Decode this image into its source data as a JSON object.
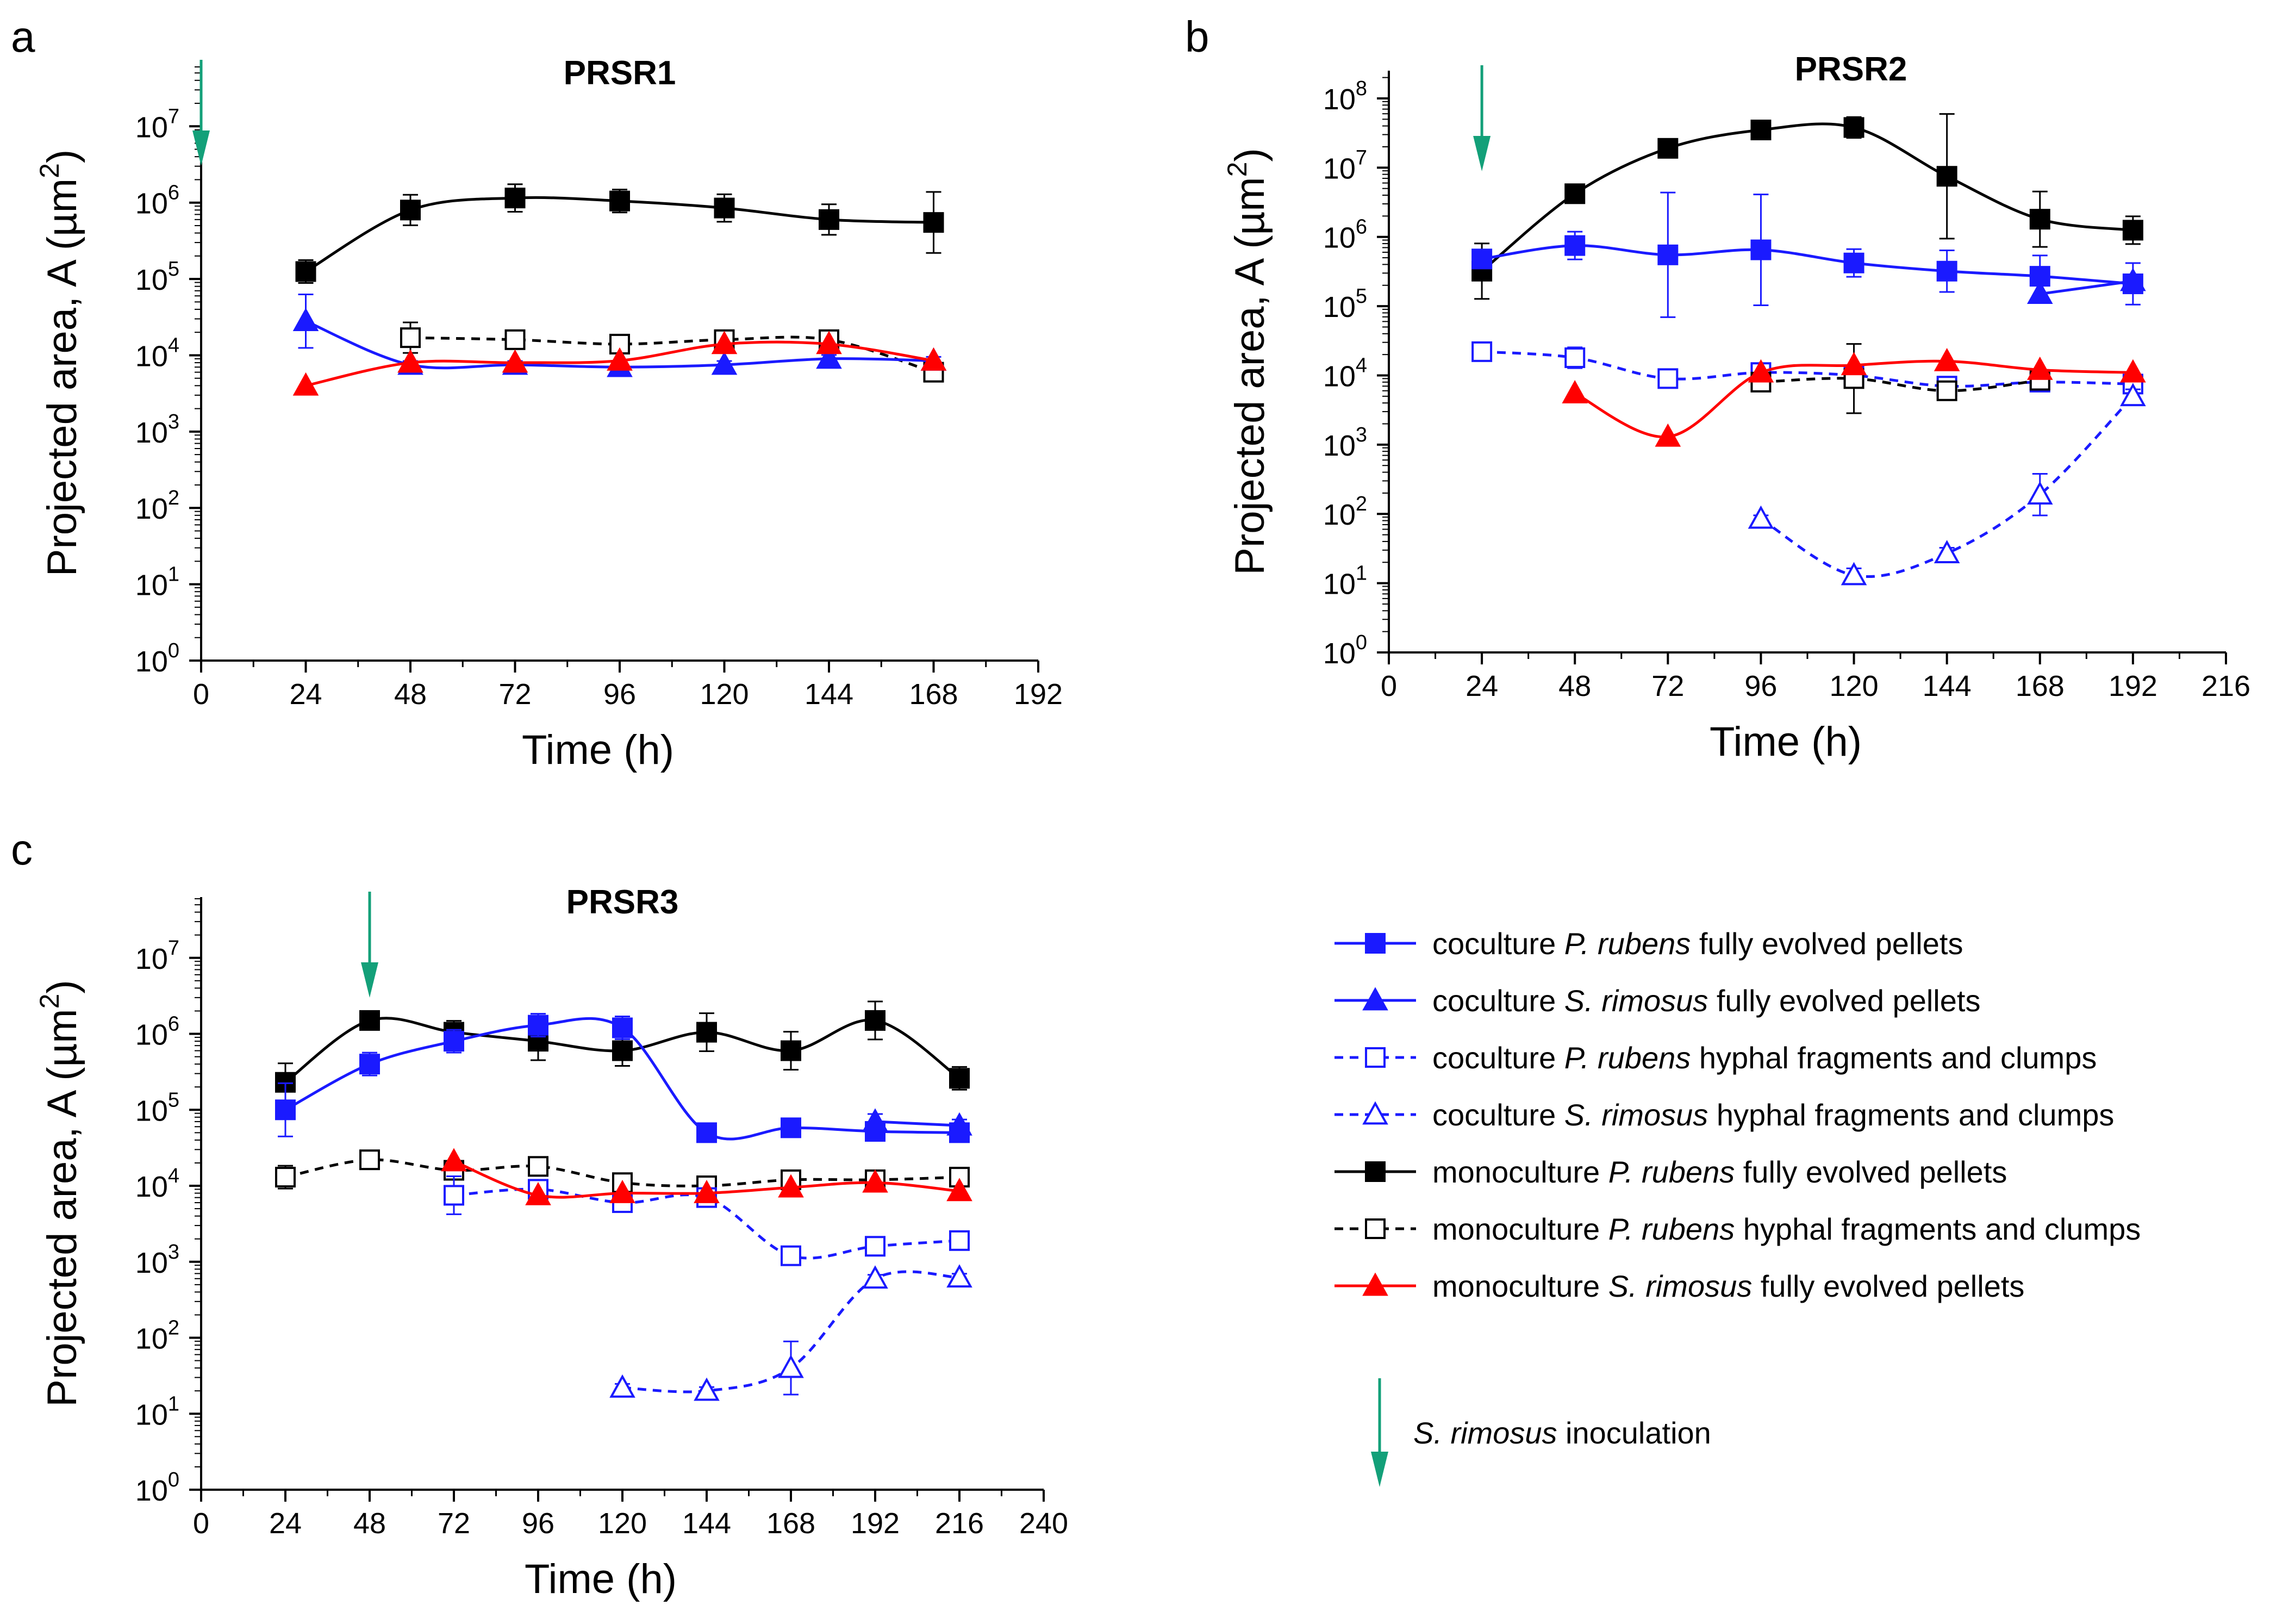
{
  "chart_data": [
    {
      "panel": "a",
      "type": "line",
      "title": "PRSR1",
      "xlabel": "Time (h)",
      "ylabel": "Projected area, A (µm",
      "ylabel_sup": "2",
      "ylabel_close": ")",
      "xlim": [
        0,
        192
      ],
      "xticks": [
        "0",
        "24",
        "48",
        "72",
        "96",
        "120",
        "144",
        "168",
        "192"
      ],
      "ylim_log10": [
        0,
        7.8
      ],
      "yticks": [
        "10",
        "10",
        "10",
        "10",
        "10",
        "10",
        "10",
        "10"
      ],
      "yticks_exp": [
        "0",
        "1",
        "2",
        "3",
        "4",
        "5",
        "6",
        "7"
      ],
      "inoculation_time": 0,
      "series": [
        {
          "key": "mono_pr_pellet",
          "x": [
            24,
            48,
            72,
            96,
            120,
            144,
            168
          ],
          "values": [
            125000,
            800000,
            1150000,
            1050000,
            850000,
            600000,
            550000
          ],
          "err": [
            0.15,
            0.2,
            0.18,
            0.15,
            0.18,
            0.2,
            0.4
          ]
        },
        {
          "key": "mono_pr_frag",
          "x": [
            48,
            72,
            96,
            120,
            144,
            168
          ],
          "values": [
            17000,
            16000,
            14000,
            16000,
            16000,
            6000
          ],
          "err": [
            0.2,
            0.08,
            0.08,
            0.1,
            0.12,
            0.08
          ]
        },
        {
          "key": "co_sr_pellet",
          "x": [
            24,
            48,
            72,
            96,
            120,
            144,
            168
          ],
          "values": [
            28000,
            7500,
            7500,
            7000,
            7500,
            9000,
            8500
          ],
          "err": [
            0.35,
            0.05,
            0.05,
            0.05,
            0.05,
            0.05,
            0.05
          ]
        },
        {
          "key": "mono_sr_pellet",
          "x": [
            24,
            48,
            72,
            96,
            120,
            144,
            168
          ],
          "values": [
            4000,
            8000,
            8000,
            8500,
            14000,
            14000,
            8500
          ],
          "err": [
            0,
            0,
            0,
            0,
            0,
            0,
            0
          ]
        }
      ]
    },
    {
      "panel": "b",
      "type": "line",
      "title": "PRSR2",
      "xlabel": "Time (h)",
      "ylabel": "Projected area, A (µm",
      "ylabel_sup": "2",
      "ylabel_close": ")",
      "xlim": [
        0,
        216
      ],
      "xticks": [
        "0",
        "24",
        "48",
        "72",
        "96",
        "120",
        "144",
        "168",
        "192",
        "216"
      ],
      "ylim_log10": [
        0,
        8.4
      ],
      "yticks": [
        "10",
        "10",
        "10",
        "10",
        "10",
        "10",
        "10",
        "10",
        "10"
      ],
      "yticks_exp": [
        "0",
        "1",
        "2",
        "3",
        "4",
        "5",
        "6",
        "7",
        "8"
      ],
      "inoculation_time": 24,
      "series": [
        {
          "key": "mono_pr_pellet",
          "x": [
            24,
            48,
            72,
            96,
            120,
            144,
            168,
            192
          ],
          "values": [
            320000,
            4200000,
            19000000,
            35000000,
            38000000,
            7500000,
            1800000,
            1250000
          ],
          "err": [
            0.4,
            0.1,
            0.1,
            0.1,
            0.15,
            0.9,
            0.4,
            0.2
          ]
        },
        {
          "key": "co_pr_pellet",
          "x": [
            24,
            48,
            72,
            96,
            120,
            144,
            168,
            192
          ],
          "values": [
            480000,
            750000,
            550000,
            650000,
            420000,
            320000,
            270000,
            210000
          ],
          "err": [
            0.1,
            0.2,
            0.9,
            0.8,
            0.2,
            0.3,
            0.3,
            0.3
          ]
        },
        {
          "key": "co_sr_pellet",
          "x": [
            168,
            192
          ],
          "values": [
            150000,
            230000
          ],
          "err": [
            0,
            0
          ]
        },
        {
          "key": "co_pr_frag",
          "x": [
            24,
            48,
            72,
            96,
            120,
            144,
            168,
            192
          ],
          "values": [
            22000,
            18000,
            9000,
            11000,
            10000,
            7000,
            8000,
            7500
          ],
          "err": [
            0.1,
            0.15,
            0.08,
            0.1,
            0.1,
            0.1,
            0.08,
            0.08
          ]
        },
        {
          "key": "mono_pr_frag",
          "x": [
            96,
            120,
            144,
            168
          ],
          "values": [
            8000,
            9000,
            6000,
            8500
          ],
          "err": [
            0.1,
            0.5,
            0.1,
            0.1
          ]
        },
        {
          "key": "mono_sr_pellet",
          "x": [
            48,
            72,
            96,
            120,
            144,
            168,
            192
          ],
          "values": [
            5500,
            1300,
            11000,
            14000,
            16000,
            12000,
            11000
          ],
          "err": [
            0,
            0,
            0,
            0,
            0,
            0,
            0
          ]
        },
        {
          "key": "co_sr_frag",
          "x": [
            96,
            120,
            144,
            168,
            192
          ],
          "values": [
            85,
            13,
            27,
            190,
            5000
          ],
          "err": [
            0.05,
            0.1,
            0.08,
            0.3,
            0.1
          ]
        }
      ]
    },
    {
      "panel": "c",
      "type": "line",
      "title": "PRSR3",
      "xlabel": "Time (h)",
      "ylabel": "Projected area, A (µm",
      "ylabel_sup": "2",
      "ylabel_close": ")",
      "xlim": [
        0,
        240
      ],
      "xticks": [
        "0",
        "24",
        "48",
        "72",
        "96",
        "120",
        "144",
        "168",
        "192",
        "216",
        "240"
      ],
      "ylim_log10": [
        0,
        7.8
      ],
      "yticks": [
        "10",
        "10",
        "10",
        "10",
        "10",
        "10",
        "10",
        "10"
      ],
      "yticks_exp": [
        "0",
        "1",
        "2",
        "3",
        "4",
        "5",
        "6",
        "7"
      ],
      "inoculation_time": 48,
      "series": [
        {
          "key": "mono_pr_pellet",
          "x": [
            24,
            48,
            72,
            96,
            120,
            144,
            168,
            192,
            216
          ],
          "values": [
            230000,
            1500000,
            1050000,
            800000,
            600000,
            1050000,
            600000,
            1500000,
            260000
          ],
          "err": [
            0.25,
            0.05,
            0.15,
            0.25,
            0.2,
            0.25,
            0.25,
            0.25,
            0.15
          ]
        },
        {
          "key": "co_pr_pellet",
          "x": [
            24,
            48,
            72,
            96,
            120,
            144,
            168,
            192,
            216
          ],
          "values": [
            100000,
            400000,
            800000,
            1300000,
            1200000,
            50000,
            58000,
            52000,
            50000
          ],
          "err": [
            0.35,
            0.15,
            0.15,
            0.15,
            0.15,
            0.05,
            0.08,
            0.08,
            0.05
          ]
        },
        {
          "key": "co_sr_pellet",
          "x": [
            192,
            216
          ],
          "values": [
            70000,
            62000
          ],
          "err": [
            0.1,
            0.08
          ]
        },
        {
          "key": "mono_pr_frag",
          "x": [
            24,
            48,
            72,
            96,
            120,
            144,
            168,
            192,
            216
          ],
          "values": [
            13000,
            22000,
            16000,
            18000,
            11000,
            10000,
            12000,
            12000,
            13000
          ],
          "err": [
            0.15,
            0.05,
            0.1,
            0.1,
            0.1,
            0.1,
            0.1,
            0.1,
            0.08
          ]
        },
        {
          "key": "co_pr_frag",
          "x": [
            72,
            96,
            120,
            144,
            168,
            192,
            216
          ],
          "values": [
            7500,
            9000,
            6000,
            7000,
            1200,
            1600,
            1900
          ],
          "err": [
            0.25,
            0.1,
            0.1,
            0.1,
            0.1,
            0.05,
            0.05
          ]
        },
        {
          "key": "mono_sr_pellet",
          "x": [
            72,
            96,
            120,
            144,
            168,
            192,
            216
          ],
          "values": [
            21000,
            7500,
            8000,
            8000,
            9500,
            11000,
            8500
          ],
          "err": [
            0,
            0,
            0,
            0,
            0,
            0,
            0
          ]
        },
        {
          "key": "co_sr_frag",
          "x": [
            120,
            144,
            168,
            192,
            216
          ],
          "values": [
            22,
            20,
            40,
            600,
            620
          ],
          "err": [
            0.05,
            0.05,
            0.35,
            0.05,
            0.05
          ]
        }
      ]
    }
  ],
  "legend": {
    "items": [
      {
        "key": "co_pr_pellet",
        "pre": "coculture ",
        "species": "P. rubens",
        "post": " fully evolved pellets"
      },
      {
        "key": "co_sr_pellet",
        "pre": "coculture ",
        "species": "S. rimosus",
        "post": "  fully evolved pellets"
      },
      {
        "key": "co_pr_frag",
        "pre": "coculture ",
        "species": "P. rubens",
        "post": " hyphal fragments and clumps"
      },
      {
        "key": "co_sr_frag",
        "pre": "coculture ",
        "species": "S. rimosus",
        "post": " hyphal fragments and clumps"
      },
      {
        "key": "mono_pr_pellet",
        "pre": "monoculture ",
        "species": "P. rubens",
        "post": " fully evolved pellets"
      },
      {
        "key": "mono_pr_frag",
        "pre": "monoculture ",
        "species": "P. rubens",
        "post": " hyphal fragments and clumps"
      },
      {
        "key": "mono_sr_pellet",
        "pre": "monoculture ",
        "species": "S. rimosus",
        "post": " fully evolved pellets"
      }
    ],
    "arrow_species": "S. rimosus",
    "arrow_post": " inoculation"
  },
  "styles": {
    "co_pr_pellet": {
      "color": "#1a1aff",
      "dash": false,
      "marker": "square",
      "fill": true
    },
    "co_sr_pellet": {
      "color": "#1a1aff",
      "dash": false,
      "marker": "triangle",
      "fill": true
    },
    "co_pr_frag": {
      "color": "#1a1aff",
      "dash": true,
      "marker": "square",
      "fill": false
    },
    "co_sr_frag": {
      "color": "#1a1aff",
      "dash": true,
      "marker": "triangle",
      "fill": false
    },
    "mono_pr_pellet": {
      "color": "#000000",
      "dash": false,
      "marker": "square",
      "fill": true
    },
    "mono_pr_frag": {
      "color": "#000000",
      "dash": true,
      "marker": "square",
      "fill": false
    },
    "mono_sr_pellet": {
      "color": "#ff0000",
      "dash": false,
      "marker": "triangle",
      "fill": true
    }
  },
  "colors": {
    "arrow": "#13a079",
    "axis": "#000000"
  }
}
